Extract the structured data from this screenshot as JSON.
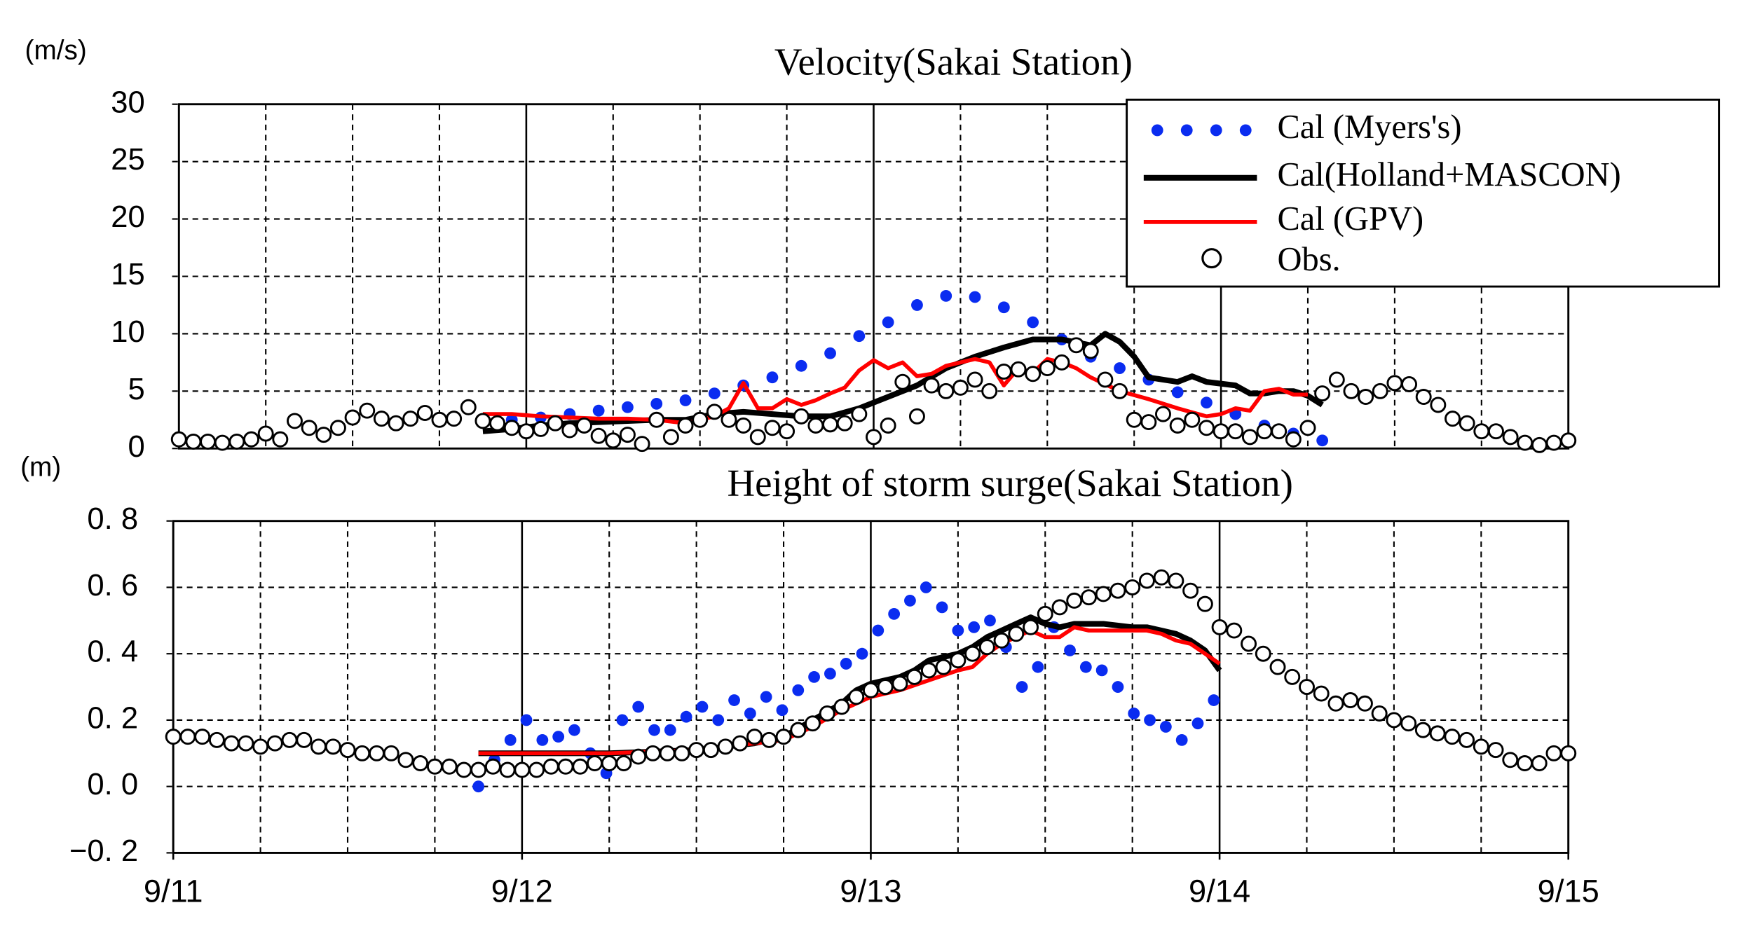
{
  "chart_data": [
    {
      "type": "line",
      "title": "Velocity(Sakai Station)",
      "unit_label": "(m/s)",
      "xlim": [
        0,
        96
      ],
      "xgrid_major": [
        24,
        48,
        72
      ],
      "xgrid_minor": [
        6,
        12,
        18,
        30,
        36,
        42,
        54,
        60,
        66,
        78,
        84,
        90
      ],
      "ylim": [
        0,
        30
      ],
      "yticks": [
        0,
        5,
        10,
        15,
        20,
        25,
        30
      ],
      "grid": true,
      "legend": "upper right",
      "series": [
        {
          "name": "Cal (Myers's)",
          "style": "dots",
          "color": "#0a2cf0",
          "x": [
            21,
            23,
            25,
            27,
            29,
            31,
            33,
            35,
            37,
            39,
            41,
            43,
            45,
            47,
            49,
            51,
            53,
            55,
            57,
            59,
            61,
            63,
            65,
            67,
            69,
            71,
            73,
            75,
            77,
            79
          ],
          "values": [
            2.3,
            2.5,
            2.7,
            3.0,
            3.3,
            3.6,
            3.9,
            4.2,
            4.8,
            5.5,
            6.2,
            7.2,
            8.3,
            9.8,
            11.0,
            12.5,
            13.3,
            13.2,
            12.3,
            11.0,
            9.5,
            8.0,
            7.0,
            6.0,
            4.9,
            4.0,
            3.0,
            2.0,
            1.3,
            0.7
          ]
        },
        {
          "name": "Cal(Holland+MASCON)",
          "style": "line",
          "width": 5,
          "color": "#000000",
          "x": [
            21,
            23,
            25,
            27,
            29,
            31,
            33,
            35,
            37,
            39,
            41,
            43,
            45,
            47,
            49,
            51,
            53,
            55,
            57,
            59,
            61,
            63,
            64,
            65,
            66,
            67,
            69,
            70,
            71,
            73,
            74,
            75,
            76,
            77,
            78,
            79
          ],
          "values": [
            1.5,
            1.7,
            2.0,
            2.2,
            2.3,
            2.4,
            2.5,
            2.5,
            3.0,
            3.2,
            3.0,
            2.8,
            2.8,
            3.5,
            4.5,
            5.5,
            7.0,
            8.0,
            8.8,
            9.5,
            9.5,
            9.0,
            10.0,
            9.3,
            8.0,
            6.2,
            5.8,
            6.3,
            5.8,
            5.5,
            4.8,
            4.8,
            5.0,
            5.0,
            4.6,
            3.8
          ]
        },
        {
          "name": "Cal (GPV)",
          "style": "line",
          "width": 3.5,
          "color": "#ff0000",
          "x": [
            21,
            23,
            25,
            27,
            29,
            31,
            33,
            35,
            37,
            38,
            39,
            40,
            41,
            42,
            43,
            44,
            45,
            46,
            47,
            48,
            49,
            50,
            51,
            52,
            53,
            54,
            55,
            56,
            57,
            58,
            59,
            60,
            61,
            62,
            63,
            65,
            67,
            69,
            71,
            72,
            73,
            74,
            75,
            76,
            77,
            78
          ],
          "values": [
            3.0,
            3.0,
            2.8,
            2.7,
            2.6,
            2.6,
            2.5,
            2.2,
            2.8,
            3.5,
            5.7,
            3.5,
            3.5,
            4.3,
            3.8,
            4.2,
            4.8,
            5.3,
            6.8,
            7.7,
            7.0,
            7.5,
            6.3,
            6.5,
            7.2,
            7.5,
            7.8,
            7.5,
            5.5,
            7.0,
            6.6,
            7.8,
            7.5,
            7.0,
            6.2,
            5.0,
            4.3,
            3.5,
            2.8,
            3.0,
            3.5,
            3.3,
            5.0,
            5.2,
            4.7,
            4.7
          ]
        },
        {
          "name": "Obs.",
          "style": "circles",
          "color": "#000000",
          "x": [
            0,
            1,
            2,
            3,
            4,
            5,
            6,
            7,
            8,
            9,
            10,
            11,
            12,
            13,
            14,
            15,
            16,
            17,
            18,
            19,
            20,
            21,
            22,
            23,
            24,
            25,
            26,
            27,
            28,
            29,
            30,
            31,
            32,
            33,
            34,
            35,
            36,
            37,
            38,
            39,
            40,
            41,
            42,
            43,
            44,
            45,
            46,
            47,
            48,
            49,
            50,
            51,
            52,
            53,
            54,
            55,
            56,
            57,
            58,
            59,
            60,
            61,
            62,
            63,
            64,
            65,
            66,
            67,
            68,
            69,
            70,
            71,
            72,
            73,
            74,
            75,
            76,
            77,
            78,
            79,
            80,
            81,
            82,
            83,
            84,
            85,
            86,
            87,
            88,
            89,
            90,
            91,
            92,
            93,
            94,
            95,
            96
          ],
          "values": [
            0.8,
            0.6,
            0.6,
            0.5,
            0.6,
            0.8,
            1.3,
            0.8,
            2.4,
            1.8,
            1.2,
            1.8,
            2.7,
            3.3,
            2.6,
            2.2,
            2.6,
            3.1,
            2.5,
            2.6,
            3.6,
            2.4,
            2.2,
            1.8,
            1.5,
            1.7,
            2.2,
            1.6,
            2.0,
            1.1,
            0.7,
            1.2,
            0.4,
            2.5,
            1.0,
            2.0,
            2.5,
            3.2,
            2.5,
            2.0,
            1.0,
            1.8,
            1.5,
            2.8,
            2.0,
            2.1,
            2.2,
            3.0,
            1.0,
            2.0,
            5.8,
            2.8,
            5.5,
            5.0,
            5.3,
            6.0,
            5.0,
            6.7,
            6.9,
            6.5,
            7.0,
            7.5,
            9.0,
            8.5,
            6.0,
            5.0,
            2.5,
            2.3,
            3.0,
            2.0,
            2.5,
            1.8,
            1.5,
            1.5,
            1.0,
            1.5,
            1.5,
            0.8,
            1.8,
            4.8,
            6.0,
            5.0,
            4.5,
            5.0,
            5.7,
            5.6,
            4.5,
            3.8,
            2.6,
            2.2,
            1.5,
            1.5,
            1.0,
            0.5,
            0.3,
            0.5,
            0.7
          ]
        }
      ]
    },
    {
      "type": "line",
      "title": "Height of storm surge(Sakai Station)",
      "unit_label": "(m)",
      "xlim": [
        0,
        96
      ],
      "xticks": [
        {
          "value": 0,
          "label": "9/11"
        },
        {
          "value": 24,
          "label": "9/12"
        },
        {
          "value": 48,
          "label": "9/13"
        },
        {
          "value": 72,
          "label": "9/14"
        },
        {
          "value": 96,
          "label": "9/15"
        }
      ],
      "xgrid_minor": [
        6,
        12,
        18,
        30,
        36,
        42,
        54,
        60,
        66,
        78,
        84,
        90
      ],
      "ylim": [
        -0.2,
        0.8
      ],
      "yticks": [
        {
          "value": -0.2,
          "label": "−0. 2"
        },
        {
          "value": 0,
          "label": "0. 0"
        },
        {
          "value": 0.2,
          "label": "0. 2"
        },
        {
          "value": 0.4,
          "label": "0. 4"
        },
        {
          "value": 0.6,
          "label": "0. 6"
        },
        {
          "value": 0.8,
          "label": "0. 8"
        }
      ],
      "grid": true,
      "series": [
        {
          "style": "dots",
          "color": "#0a2cf0",
          "x": [
            21,
            22.1,
            23.2,
            24.3,
            25.4,
            26.5,
            27.6,
            28.7,
            29.8,
            30.9,
            32,
            33.1,
            34.2,
            35.3,
            36.4,
            37.5,
            38.6,
            39.7,
            40.8,
            41.9,
            43,
            44.1,
            45.2,
            46.3,
            47.4,
            48.5,
            49.6,
            50.7,
            51.8,
            52.9,
            54,
            55.1,
            56.2,
            57.3,
            58.4,
            59.5,
            60.6,
            61.7,
            62.8,
            63.9,
            65,
            66.1,
            67.2,
            68.3,
            69.4,
            70.5,
            71.6
          ],
          "values": [
            0.0,
            0.08,
            0.14,
            0.2,
            0.14,
            0.15,
            0.17,
            0.1,
            0.04,
            0.2,
            0.24,
            0.17,
            0.17,
            0.21,
            0.24,
            0.2,
            0.26,
            0.22,
            0.27,
            0.23,
            0.29,
            0.33,
            0.34,
            0.37,
            0.4,
            0.47,
            0.52,
            0.56,
            0.6,
            0.54,
            0.47,
            0.48,
            0.5,
            0.42,
            0.3,
            0.36,
            0.48,
            0.41,
            0.36,
            0.35,
            0.3,
            0.22,
            0.2,
            0.18,
            0.14,
            0.19,
            0.26
          ]
        },
        {
          "style": "line",
          "width": 5,
          "color": "#000000",
          "x": [
            21,
            24,
            30,
            36,
            40,
            42,
            44,
            46,
            47,
            48,
            49,
            50,
            51,
            52,
            53,
            54,
            55,
            56,
            57,
            58,
            59,
            60,
            61,
            62,
            64,
            66,
            67,
            68,
            69,
            70,
            71,
            72
          ],
          "values": [
            0.1,
            0.1,
            0.1,
            0.11,
            0.13,
            0.15,
            0.2,
            0.25,
            0.29,
            0.31,
            0.32,
            0.33,
            0.35,
            0.38,
            0.39,
            0.4,
            0.42,
            0.45,
            0.47,
            0.49,
            0.51,
            0.49,
            0.48,
            0.49,
            0.49,
            0.48,
            0.48,
            0.47,
            0.46,
            0.44,
            0.41,
            0.35
          ]
        },
        {
          "style": "line",
          "width": 3.5,
          "color": "#ff0000",
          "x": [
            21,
            30,
            36,
            40,
            42,
            44,
            46,
            48,
            50,
            52,
            54,
            55,
            56,
            57,
            58,
            59,
            60,
            61,
            62,
            63,
            65,
            67,
            68,
            69,
            70,
            71,
            72
          ],
          "values": [
            0.1,
            0.1,
            0.11,
            0.13,
            0.14,
            0.18,
            0.23,
            0.27,
            0.29,
            0.32,
            0.35,
            0.36,
            0.4,
            0.43,
            0.45,
            0.47,
            0.45,
            0.45,
            0.48,
            0.47,
            0.47,
            0.47,
            0.46,
            0.44,
            0.43,
            0.4,
            0.37
          ]
        },
        {
          "style": "circles",
          "color": "#000000",
          "x": [
            0,
            1,
            2,
            3,
            4,
            5,
            6,
            7,
            8,
            9,
            10,
            11,
            12,
            13,
            14,
            15,
            16,
            17,
            18,
            19,
            20,
            21,
            22,
            23,
            24,
            25,
            26,
            27,
            28,
            29,
            30,
            31,
            32,
            33,
            34,
            35,
            36,
            37,
            38,
            39,
            40,
            41,
            42,
            43,
            44,
            45,
            46,
            47,
            48,
            49,
            50,
            51,
            52,
            53,
            54,
            55,
            56,
            57,
            58,
            59,
            60,
            61,
            62,
            63,
            64,
            65,
            66,
            67,
            68,
            69,
            70,
            71,
            72,
            73,
            74,
            75,
            76,
            77,
            78,
            79,
            80,
            81,
            82,
            83,
            84,
            85,
            86,
            87,
            88,
            89,
            90,
            91,
            92,
            93,
            94,
            95,
            96
          ],
          "values": [
            0.15,
            0.15,
            0.15,
            0.14,
            0.13,
            0.13,
            0.12,
            0.13,
            0.14,
            0.14,
            0.12,
            0.12,
            0.11,
            0.1,
            0.1,
            0.1,
            0.08,
            0.07,
            0.06,
            0.06,
            0.05,
            0.05,
            0.06,
            0.05,
            0.05,
            0.05,
            0.06,
            0.06,
            0.06,
            0.07,
            0.07,
            0.07,
            0.09,
            0.1,
            0.1,
            0.1,
            0.11,
            0.11,
            0.12,
            0.13,
            0.15,
            0.14,
            0.15,
            0.17,
            0.19,
            0.22,
            0.24,
            0.27,
            0.29,
            0.3,
            0.31,
            0.33,
            0.35,
            0.36,
            0.38,
            0.4,
            0.42,
            0.44,
            0.46,
            0.48,
            0.52,
            0.54,
            0.56,
            0.57,
            0.58,
            0.59,
            0.6,
            0.62,
            0.63,
            0.62,
            0.59,
            0.55,
            0.48,
            0.47,
            0.43,
            0.4,
            0.36,
            0.33,
            0.3,
            0.28,
            0.25,
            0.26,
            0.25,
            0.22,
            0.2,
            0.19,
            0.17,
            0.16,
            0.15,
            0.14,
            0.12,
            0.11,
            0.08,
            0.07,
            0.07,
            0.1,
            0.1
          ]
        }
      ]
    }
  ]
}
